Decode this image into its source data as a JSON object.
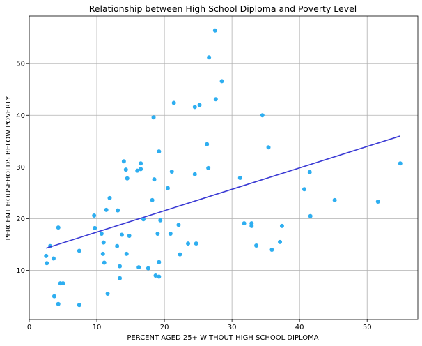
{
  "chart_data": {
    "type": "scatter",
    "title": "Relationship between High School Diploma and Poverty Level",
    "xlabel": "PERCENT AGED 25+ WITHOUT HIGH SCHOOL DIPLOMA",
    "ylabel": "PERCENT HOUSEHOLDS BELOW POVERTY",
    "xlim": [
      0,
      57.5
    ],
    "ylim": [
      0.5,
      59.2
    ],
    "xticks": [
      0,
      10,
      20,
      30,
      40,
      50
    ],
    "yticks": [
      10,
      20,
      30,
      40,
      50
    ],
    "grid": true,
    "point_color": "#2eaef0",
    "trendline_color": "#3a3ad4",
    "points": [
      {
        "x": 2.5,
        "y": 12.8
      },
      {
        "x": 2.6,
        "y": 11.4
      },
      {
        "x": 3.1,
        "y": 14.7
      },
      {
        "x": 3.6,
        "y": 12.3
      },
      {
        "x": 3.7,
        "y": 5.0
      },
      {
        "x": 4.3,
        "y": 3.5
      },
      {
        "x": 4.3,
        "y": 18.3
      },
      {
        "x": 4.6,
        "y": 7.5
      },
      {
        "x": 5.0,
        "y": 7.5
      },
      {
        "x": 7.4,
        "y": 13.8
      },
      {
        "x": 7.4,
        "y": 3.3
      },
      {
        "x": 9.6,
        "y": 20.6
      },
      {
        "x": 9.7,
        "y": 18.2
      },
      {
        "x": 10.7,
        "y": 17.1
      },
      {
        "x": 10.9,
        "y": 13.2
      },
      {
        "x": 11.0,
        "y": 15.4
      },
      {
        "x": 11.1,
        "y": 11.5
      },
      {
        "x": 11.4,
        "y": 21.7
      },
      {
        "x": 11.6,
        "y": 5.5
      },
      {
        "x": 11.9,
        "y": 24.0
      },
      {
        "x": 13.0,
        "y": 14.7
      },
      {
        "x": 13.1,
        "y": 21.6
      },
      {
        "x": 13.4,
        "y": 10.8
      },
      {
        "x": 13.4,
        "y": 8.5
      },
      {
        "x": 13.7,
        "y": 16.9
      },
      {
        "x": 14.0,
        "y": 31.1
      },
      {
        "x": 14.3,
        "y": 29.5
      },
      {
        "x": 14.4,
        "y": 13.2
      },
      {
        "x": 14.5,
        "y": 27.8
      },
      {
        "x": 14.8,
        "y": 16.7
      },
      {
        "x": 16.0,
        "y": 29.3
      },
      {
        "x": 16.2,
        "y": 10.6
      },
      {
        "x": 16.5,
        "y": 29.6
      },
      {
        "x": 16.5,
        "y": 30.7
      },
      {
        "x": 16.9,
        "y": 19.9
      },
      {
        "x": 17.6,
        "y": 10.4
      },
      {
        "x": 18.2,
        "y": 23.6
      },
      {
        "x": 18.4,
        "y": 39.6
      },
      {
        "x": 18.5,
        "y": 27.6
      },
      {
        "x": 18.7,
        "y": 9.0
      },
      {
        "x": 19.0,
        "y": 17.1
      },
      {
        "x": 19.2,
        "y": 11.6
      },
      {
        "x": 19.2,
        "y": 8.8
      },
      {
        "x": 19.2,
        "y": 33.0
      },
      {
        "x": 19.4,
        "y": 19.7
      },
      {
        "x": 20.5,
        "y": 25.9
      },
      {
        "x": 20.9,
        "y": 17.1
      },
      {
        "x": 21.1,
        "y": 29.1
      },
      {
        "x": 21.4,
        "y": 42.4
      },
      {
        "x": 22.1,
        "y": 18.8
      },
      {
        "x": 22.3,
        "y": 13.1
      },
      {
        "x": 23.5,
        "y": 15.2
      },
      {
        "x": 24.5,
        "y": 41.6
      },
      {
        "x": 24.5,
        "y": 28.6
      },
      {
        "x": 24.7,
        "y": 15.2
      },
      {
        "x": 25.2,
        "y": 42.0
      },
      {
        "x": 26.3,
        "y": 34.4
      },
      {
        "x": 26.5,
        "y": 29.8
      },
      {
        "x": 26.6,
        "y": 51.2
      },
      {
        "x": 27.5,
        "y": 56.4
      },
      {
        "x": 27.6,
        "y": 43.1
      },
      {
        "x": 28.5,
        "y": 46.6
      },
      {
        "x": 31.2,
        "y": 27.9
      },
      {
        "x": 31.8,
        "y": 19.1
      },
      {
        "x": 32.9,
        "y": 19.1
      },
      {
        "x": 32.9,
        "y": 18.6
      },
      {
        "x": 33.6,
        "y": 14.8
      },
      {
        "x": 34.5,
        "y": 40.0
      },
      {
        "x": 35.4,
        "y": 33.8
      },
      {
        "x": 35.9,
        "y": 14.0
      },
      {
        "x": 37.1,
        "y": 15.5
      },
      {
        "x": 37.4,
        "y": 18.6
      },
      {
        "x": 40.7,
        "y": 25.7
      },
      {
        "x": 41.5,
        "y": 29.0
      },
      {
        "x": 41.6,
        "y": 20.5
      },
      {
        "x": 45.2,
        "y": 23.6
      },
      {
        "x": 51.6,
        "y": 23.3
      },
      {
        "x": 54.9,
        "y": 30.7
      }
    ],
    "trendline": {
      "x": [
        2.5,
        54.9
      ],
      "y": [
        14.3,
        36.0
      ]
    }
  }
}
